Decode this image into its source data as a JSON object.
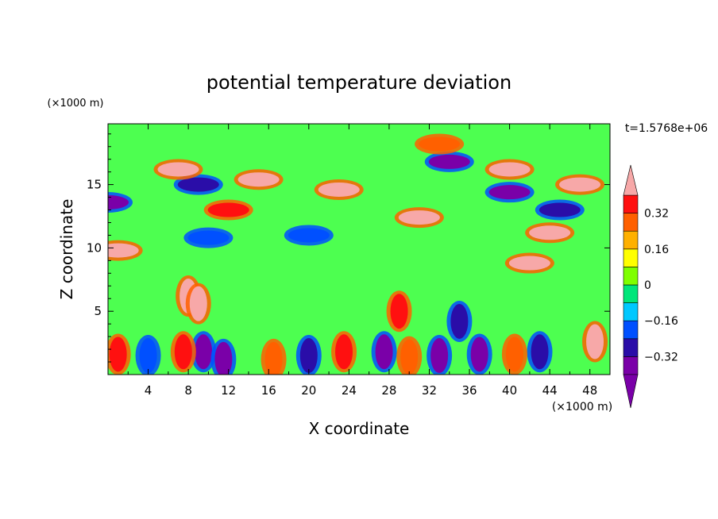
{
  "chart_data": {
    "type": "heatmap",
    "title": "potential temperature deviation",
    "xlabel": "X coordinate",
    "ylabel": "Z coordinate",
    "x_unit": "(×1000 m)",
    "y_unit": "(×1000 m)",
    "time_label": "t=1.5768e+06",
    "xlim": [
      0,
      50
    ],
    "ylim": [
      0,
      19.8
    ],
    "x_ticks": [
      "4",
      "8",
      "12",
      "16",
      "20",
      "24",
      "28",
      "32",
      "36",
      "40",
      "44",
      "48"
    ],
    "x_tick_values": [
      4,
      8,
      12,
      16,
      20,
      24,
      28,
      32,
      36,
      40,
      44,
      48
    ],
    "y_ticks": [
      "5",
      "10",
      "15"
    ],
    "y_tick_values": [
      5,
      10,
      15
    ],
    "colorbar": {
      "levels": [
        -0.4,
        -0.32,
        -0.24,
        -0.16,
        -0.08,
        0,
        0.08,
        0.16,
        0.24,
        0.32,
        0.4
      ],
      "labels": [
        "0.32",
        "0.16",
        "0",
        "−0.16",
        "−0.32"
      ],
      "label_values": [
        0.32,
        0.16,
        0,
        -0.16,
        -0.32
      ],
      "colors": [
        "#7a00a8",
        "#2a0da8",
        "#0050ff",
        "#00c8ff",
        "#00e67a",
        "#7fff00",
        "#ffff00",
        "#ffb000",
        "#ff6000",
        "#ff1010"
      ],
      "low_color": "#7a00a8",
      "high_color": "#f7a8a8"
    },
    "features": [
      {
        "x": 0,
        "z": 13.6,
        "value": -0.34
      },
      {
        "x": 9,
        "z": 15.0,
        "value": -0.3
      },
      {
        "x": 23,
        "z": 14.6,
        "value": 0.45
      },
      {
        "x": 15,
        "z": 15.4,
        "value": 0.4
      },
      {
        "x": 7,
        "z": 16.2,
        "value": 0.42
      },
      {
        "x": 12,
        "z": 13.0,
        "value": 0.38
      },
      {
        "x": 34,
        "z": 16.8,
        "value": -0.42
      },
      {
        "x": 40,
        "z": 14.4,
        "value": -0.42
      },
      {
        "x": 45,
        "z": 13.0,
        "value": -0.32
      },
      {
        "x": 40,
        "z": 16.2,
        "value": 0.45
      },
      {
        "x": 44,
        "z": 11.2,
        "value": 0.42
      },
      {
        "x": 47,
        "z": 15.0,
        "value": 0.4
      },
      {
        "x": 31,
        "z": 12.4,
        "value": 0.4
      },
      {
        "x": 33,
        "z": 18.2,
        "value": 0.25
      },
      {
        "x": 20,
        "z": 11.0,
        "value": -0.22
      },
      {
        "x": 10,
        "z": 10.8,
        "value": -0.2
      },
      {
        "x": 42,
        "z": 8.8,
        "value": 0.4
      },
      {
        "x": 1,
        "z": 9.8,
        "value": 0.42
      },
      {
        "x": 8,
        "z": 6.2,
        "value": 0.42
      },
      {
        "x": 9,
        "z": 5.6,
        "value": 0.4
      },
      {
        "x": 29,
        "z": 5.0,
        "value": 0.38
      },
      {
        "x": 35,
        "z": 4.2,
        "value": -0.25
      },
      {
        "x": 9.5,
        "z": 1.8,
        "value": -0.42
      },
      {
        "x": 11.5,
        "z": 1.2,
        "value": -0.42
      },
      {
        "x": 27.5,
        "z": 1.8,
        "value": -0.38
      },
      {
        "x": 33,
        "z": 1.5,
        "value": -0.35
      },
      {
        "x": 37,
        "z": 1.6,
        "value": -0.38
      },
      {
        "x": 43,
        "z": 1.8,
        "value": -0.32
      },
      {
        "x": 20,
        "z": 1.5,
        "value": -0.28
      },
      {
        "x": 4,
        "z": 1.5,
        "value": -0.22
      },
      {
        "x": 1,
        "z": 1.6,
        "value": 0.35
      },
      {
        "x": 7.5,
        "z": 1.8,
        "value": 0.32
      },
      {
        "x": 23.5,
        "z": 1.8,
        "value": 0.35
      },
      {
        "x": 30,
        "z": 1.4,
        "value": 0.28
      },
      {
        "x": 40.5,
        "z": 1.6,
        "value": 0.3
      },
      {
        "x": 48.5,
        "z": 2.6,
        "value": 0.42
      },
      {
        "x": 16.5,
        "z": 1.2,
        "value": 0.26
      }
    ]
  }
}
